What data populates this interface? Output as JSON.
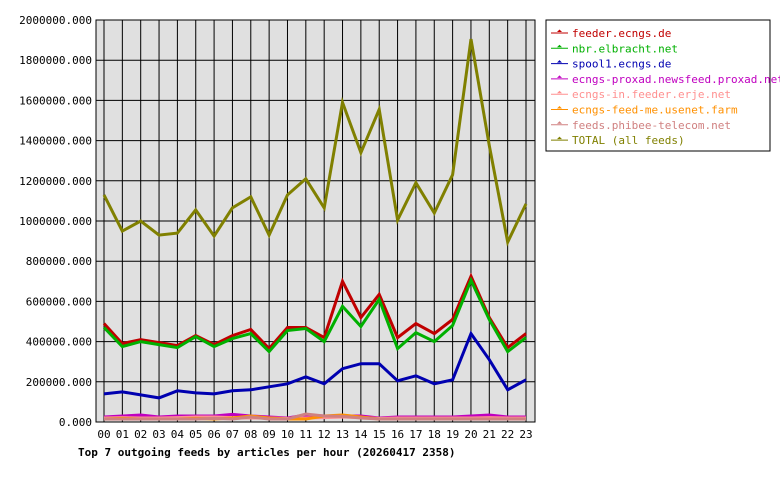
{
  "chart_data": {
    "type": "line",
    "title": "Top 7 outgoing feeds by articles per hour (20260417 2358)",
    "categories": [
      "00",
      "01",
      "02",
      "03",
      "04",
      "05",
      "06",
      "07",
      "08",
      "09",
      "10",
      "11",
      "12",
      "13",
      "14",
      "15",
      "16",
      "17",
      "18",
      "19",
      "20",
      "21",
      "22",
      "23"
    ],
    "ylim": [
      0,
      2000000
    ],
    "y_ticks": [
      "0.000",
      "200000.000",
      "400000.000",
      "600000.000",
      "800000.000",
      "1000000.000",
      "1200000.000",
      "1400000.000",
      "1600000.000",
      "1800000.000",
      "2000000.000"
    ],
    "grid": true,
    "legend_position": "right",
    "series": [
      {
        "name": "feeder.ecngs.de",
        "color": "#c00000",
        "values": [
          490000,
          390000,
          410000,
          395000,
          380000,
          430000,
          385000,
          430000,
          460000,
          365000,
          470000,
          470000,
          420000,
          700000,
          520000,
          635000,
          420000,
          490000,
          440000,
          510000,
          725000,
          520000,
          370000,
          440000
        ]
      },
      {
        "name": "nbr.elbracht.net",
        "color": "#00b000",
        "values": [
          470000,
          375000,
          400000,
          385000,
          370000,
          425000,
          375000,
          415000,
          440000,
          350000,
          455000,
          465000,
          400000,
          575000,
          475000,
          610000,
          365000,
          445000,
          400000,
          480000,
          705000,
          510000,
          350000,
          420000
        ]
      },
      {
        "name": "spool1.ecngs.de",
        "color": "#0000b0",
        "values": [
          140000,
          150000,
          135000,
          120000,
          155000,
          145000,
          140000,
          155000,
          160000,
          175000,
          190000,
          225000,
          190000,
          265000,
          290000,
          290000,
          205000,
          230000,
          190000,
          210000,
          440000,
          310000,
          160000,
          210000
        ]
      },
      {
        "name": "ecngs-proxad.newsfeed.proxad.net",
        "color": "#c000c0",
        "values": [
          25000,
          30000,
          35000,
          25000,
          30000,
          30000,
          30000,
          38000,
          30000,
          25000,
          20000,
          35000,
          30000,
          30000,
          30000,
          20000,
          25000,
          25000,
          25000,
          25000,
          30000,
          35000,
          25000,
          25000
        ]
      },
      {
        "name": "ecngs-in.feeder.erje.net",
        "color": "#ff9090",
        "values": [
          20000,
          22000,
          20000,
          20000,
          22000,
          25000,
          25000,
          22000,
          20000,
          20000,
          18000,
          20000,
          22000,
          25000,
          22000,
          18000,
          20000,
          20000,
          20000,
          20000,
          20000,
          22000,
          20000,
          20000
        ]
      },
      {
        "name": "ecngs-feed-me.usenet.farm",
        "color": "#ff9000",
        "values": [
          15000,
          18000,
          15000,
          15000,
          15000,
          18000,
          15000,
          20000,
          30000,
          20000,
          15000,
          15000,
          30000,
          35000,
          25000,
          15000,
          15000,
          15000,
          15000,
          15000,
          15000,
          15000,
          15000,
          15000
        ]
      },
      {
        "name": "feeds.phibee-telecom.net",
        "color": "#d08080",
        "values": [
          15000,
          15000,
          15000,
          15000,
          15000,
          15000,
          18000,
          15000,
          25000,
          15000,
          15000,
          40000,
          30000,
          28000,
          20000,
          15000,
          15000,
          15000,
          15000,
          15000,
          15000,
          15000,
          15000,
          15000
        ]
      },
      {
        "name": "TOTAL (all feeds)",
        "color": "#808000",
        "values": [
          1130000,
          950000,
          1000000,
          930000,
          940000,
          1055000,
          925000,
          1065000,
          1120000,
          930000,
          1130000,
          1210000,
          1065000,
          1590000,
          1340000,
          1555000,
          1005000,
          1190000,
          1040000,
          1230000,
          1905000,
          1375000,
          895000,
          1085000
        ]
      }
    ]
  }
}
